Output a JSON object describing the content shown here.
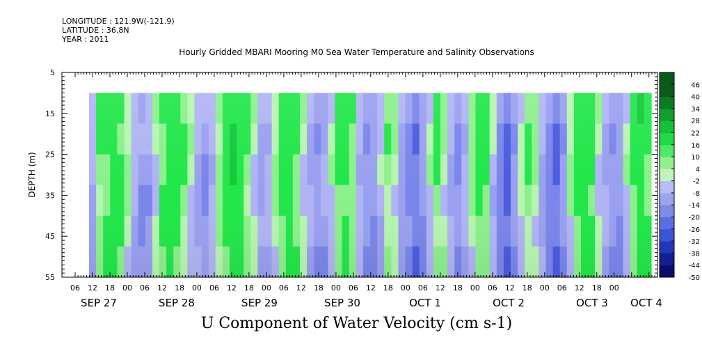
{
  "header": {
    "longitude": "LONGITUDE : 121.9W(-121.9)",
    "latitude": "LATITUDE : 36.8N",
    "year": "YEAR : 2011",
    "title": "Hourly Gridded MBARI Mooring M0 Sea Water Temperature and Salinity Observations"
  },
  "chart_data": {
    "type": "heatmap",
    "title": "Hourly Gridded MBARI Mooring M0 Sea Water Temperature and Salinity Observations",
    "xlabel": "U Component of Water Velocity (cm s-1)",
    "ylabel": "DEPTH (m)",
    "y_ticks": [
      "5",
      "15",
      "25",
      "35",
      "45",
      "55"
    ],
    "ylim": [
      5,
      55
    ],
    "y_inverted": true,
    "x_hour_ticks": [
      "06",
      "12",
      "18",
      "00",
      "06",
      "12",
      "18",
      "00",
      "06",
      "12",
      "18",
      "00",
      "06",
      "12",
      "18",
      "00",
      "06",
      "12",
      "18",
      "00",
      "06",
      "12",
      "18",
      "00",
      "06",
      "12",
      "18",
      "00",
      "06",
      "12",
      "18",
      "00"
    ],
    "x_day_labels": [
      "SEP 27",
      "SEP 28",
      "SEP 29",
      "SEP 30",
      "OCT  1",
      "OCT  2",
      "OCT  3",
      "OCT  4"
    ],
    "colorbar_ticks": [
      "46",
      "40",
      "34",
      "28",
      "22",
      "16",
      "10",
      "4",
      "-2",
      "-8",
      "-14",
      "-20",
      "-26",
      "-32",
      "-38",
      "-44",
      "-50"
    ],
    "colorbar_range": [
      -50,
      52
    ],
    "colors": {
      "positive_dark": "#0a6a1e",
      "positive_mid": "#19e63c",
      "positive_light": "#a6f2a6",
      "negative_light": "#b3b3f5",
      "negative_mid": "#5a6ae6",
      "negative_dark": "#0a0a6a"
    },
    "data_depth_range": [
      10,
      55
    ],
    "column_values_cm_s": [
      -6,
      10,
      14,
      18,
      12,
      6,
      -4,
      -10,
      -8,
      4,
      12,
      20,
      18,
      10,
      2,
      -6,
      -10,
      -4,
      8,
      16,
      22,
      18,
      10,
      4,
      -8,
      -6,
      6,
      14,
      18,
      12,
      4,
      -6,
      -12,
      -8,
      2,
      12,
      16,
      10,
      -4,
      -12,
      -10,
      -2,
      8,
      4,
      -8,
      -14,
      -16,
      -10,
      2,
      10,
      6,
      -6,
      -12,
      -4,
      8,
      14,
      12,
      -2,
      -14,
      -20,
      -12,
      2,
      10,
      6,
      -6,
      -14,
      -18,
      -10,
      4,
      14,
      18,
      14,
      4,
      -6,
      -12,
      -10,
      2,
      12,
      18,
      14
    ]
  }
}
